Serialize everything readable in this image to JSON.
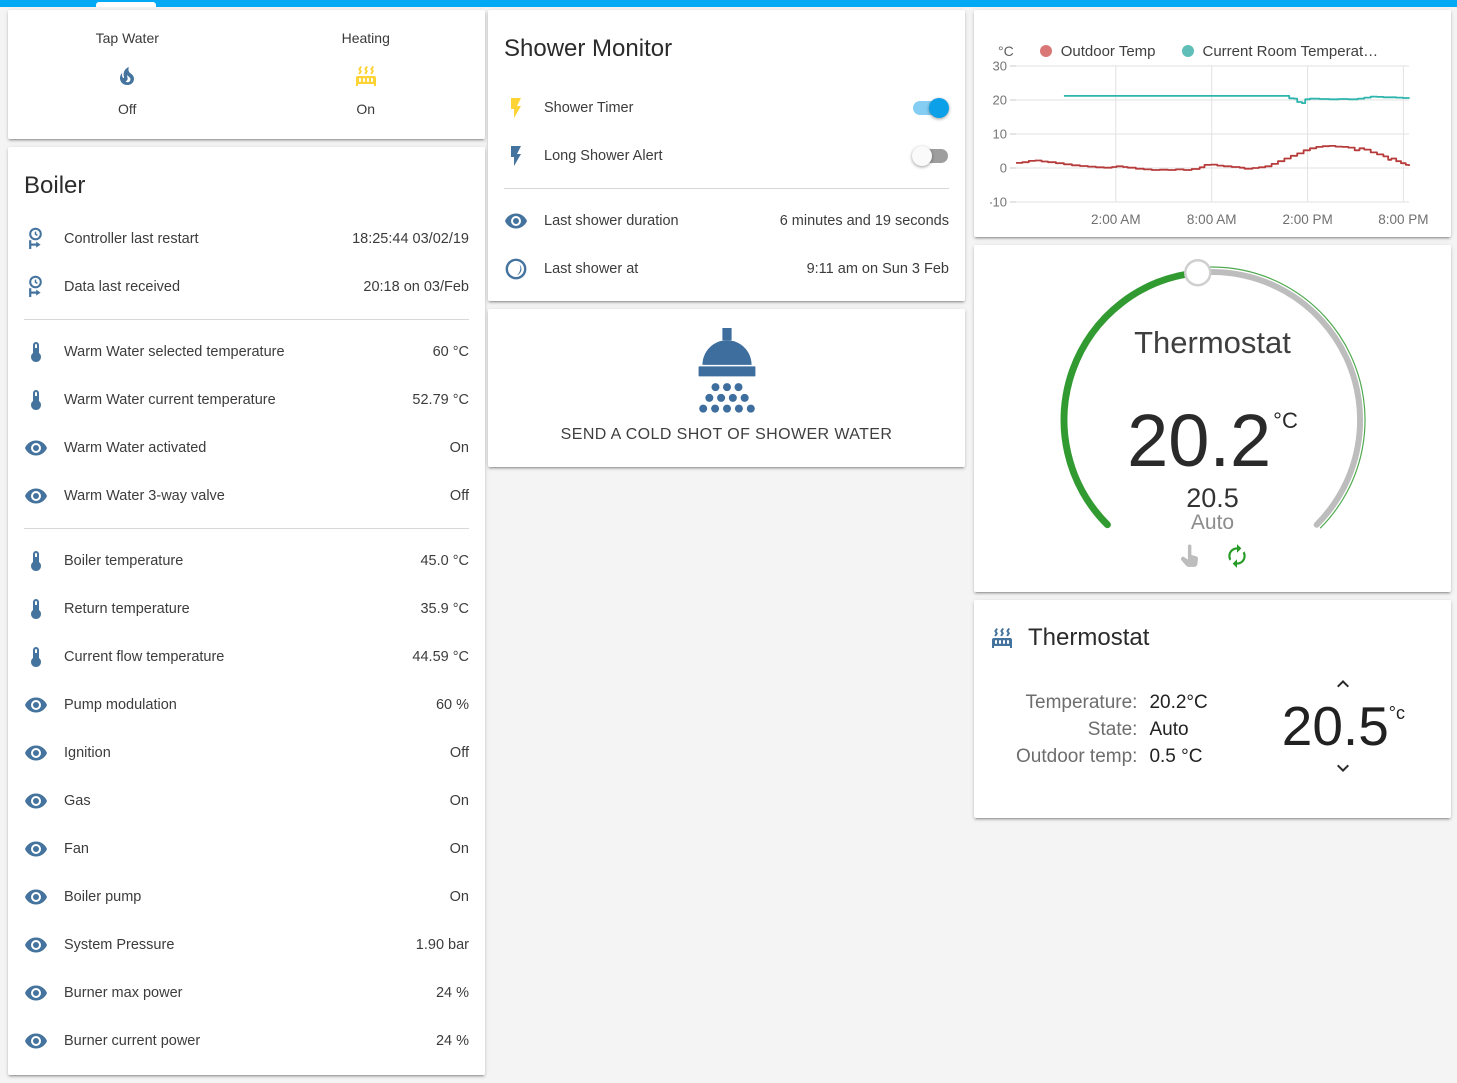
{
  "topbar": {
    "color": "#03a9f4"
  },
  "glance": {
    "items": [
      {
        "name": "Tap Water",
        "state": "Off",
        "icon": "fire-icon"
      },
      {
        "name": "Heating",
        "state": "On",
        "icon": "radiator-icon"
      }
    ]
  },
  "boiler": {
    "title": "Boiler",
    "rows_group1": [
      {
        "icon": "clock-start-icon",
        "label": "Controller last restart",
        "value": "18:25:44 03/02/19"
      },
      {
        "icon": "clock-start-icon",
        "label": "Data last received",
        "value": "20:18 on 03/Feb"
      }
    ],
    "rows_group2": [
      {
        "icon": "thermometer-icon",
        "label": "Warm Water selected temperature",
        "value": "60 °C"
      },
      {
        "icon": "thermometer-icon",
        "label": "Warm Water current temperature",
        "value": "52.79 °C"
      },
      {
        "icon": "eye-icon",
        "label": "Warm Water activated",
        "value": "On"
      },
      {
        "icon": "eye-icon",
        "label": "Warm Water 3-way valve",
        "value": "Off"
      }
    ],
    "rows_group3": [
      {
        "icon": "thermometer-icon",
        "label": "Boiler temperature",
        "value": "45.0 °C"
      },
      {
        "icon": "thermometer-icon",
        "label": "Return temperature",
        "value": "35.9 °C"
      },
      {
        "icon": "thermometer-icon",
        "label": "Current flow temperature",
        "value": "44.59 °C"
      },
      {
        "icon": "eye-icon",
        "label": "Pump modulation",
        "value": "60 %"
      },
      {
        "icon": "eye-icon",
        "label": "Ignition",
        "value": "Off"
      },
      {
        "icon": "eye-icon",
        "label": "Gas",
        "value": "On"
      },
      {
        "icon": "eye-icon",
        "label": "Fan",
        "value": "On"
      },
      {
        "icon": "eye-icon",
        "label": "Boiler pump",
        "value": "On"
      },
      {
        "icon": "eye-icon",
        "label": "System Pressure",
        "value": "1.90 bar"
      },
      {
        "icon": "eye-icon",
        "label": "Burner max power",
        "value": "24 %"
      },
      {
        "icon": "eye-icon",
        "label": "Burner current power",
        "value": "24 %"
      }
    ]
  },
  "shower": {
    "title": "Shower Monitor",
    "toggles": [
      {
        "label": "Shower Timer",
        "state": "on"
      },
      {
        "label": "Long Shower Alert",
        "state": "off"
      }
    ],
    "info": [
      {
        "label": "Last shower duration",
        "value": "6 minutes and 19 seconds"
      },
      {
        "label": "Last shower at",
        "value": "9:11 am on Sun 3 Feb"
      }
    ],
    "button_label": "SEND A COLD SHOT OF SHOWER WATER"
  },
  "chart_data": {
    "type": "line",
    "title": "",
    "xlabel": "",
    "ylabel": "°C",
    "ylim": [
      -10,
      30
    ],
    "yticks": [
      30,
      20,
      10,
      0,
      -10
    ],
    "x_window_hours": 24.6,
    "grid": true,
    "legend_position": "top",
    "xticks": [
      {
        "hours": 6.25,
        "label": "2:00 AM"
      },
      {
        "hours": 12.25,
        "label": "8:00 AM"
      },
      {
        "hours": 18.25,
        "label": "2:00 PM"
      },
      {
        "hours": 24.25,
        "label": "8:00 PM"
      }
    ],
    "series": [
      {
        "name": "Outdoor Temp",
        "color": "#b73b3b",
        "dot_color": "#d97777",
        "unit": "°C",
        "points": [
          [
            0,
            1.5
          ],
          [
            0.4,
            1.7
          ],
          [
            0.8,
            2.1
          ],
          [
            1.2,
            2.2
          ],
          [
            1.6,
            1.9
          ],
          [
            2,
            1.7
          ],
          [
            2.5,
            1.4
          ],
          [
            3,
            1.1
          ],
          [
            3.5,
            0.8
          ],
          [
            4,
            0.6
          ],
          [
            4.5,
            0.4
          ],
          [
            5,
            0.2
          ],
          [
            5.5,
            0.1
          ],
          [
            6,
            0.3
          ],
          [
            6.3,
            0.5
          ],
          [
            6.7,
            0.3
          ],
          [
            7,
            0.1
          ],
          [
            7.5,
            -0.2
          ],
          [
            8,
            -0.4
          ],
          [
            8.5,
            -0.6
          ],
          [
            9,
            -0.5
          ],
          [
            9.5,
            -0.6
          ],
          [
            10,
            -0.4
          ],
          [
            10.5,
            -0.6
          ],
          [
            11,
            -0.3
          ],
          [
            11.5,
            0.2
          ],
          [
            11.8,
            0.9
          ],
          [
            12.2,
            1.0
          ],
          [
            12.6,
            0.7
          ],
          [
            13,
            0.5
          ],
          [
            13.5,
            0.3
          ],
          [
            14,
            0.1
          ],
          [
            14.3,
            -0.2
          ],
          [
            14.8,
            0.0
          ],
          [
            15.2,
            0.2
          ],
          [
            15.6,
            0.5
          ],
          [
            16,
            1.2
          ],
          [
            16.4,
            2.0
          ],
          [
            16.8,
            2.8
          ],
          [
            17.2,
            3.6
          ],
          [
            17.6,
            4.3
          ],
          [
            18,
            5.2
          ],
          [
            18.4,
            5.8
          ],
          [
            18.8,
            6.2
          ],
          [
            19.2,
            6.4
          ],
          [
            19.6,
            6.5
          ],
          [
            20,
            6.3
          ],
          [
            20.4,
            6.2
          ],
          [
            20.8,
            6.0
          ],
          [
            21.2,
            5.2
          ],
          [
            21.5,
            5.8
          ],
          [
            21.8,
            5.4
          ],
          [
            22.2,
            4.6
          ],
          [
            22.6,
            4.0
          ],
          [
            23,
            3.4
          ],
          [
            23.3,
            2.4
          ],
          [
            23.5,
            2.8
          ],
          [
            23.8,
            2.0
          ],
          [
            24.1,
            1.4
          ],
          [
            24.4,
            0.9
          ],
          [
            24.6,
            0.6
          ]
        ]
      },
      {
        "name": "Current Room Temperat…",
        "color": "#2cb5ac",
        "dot_color": "#5fbfb8",
        "unit": "°C",
        "points": [
          [
            3,
            21.2
          ],
          [
            16.9,
            21.2
          ],
          [
            17.1,
            20.5
          ],
          [
            17.4,
            20.4
          ],
          [
            17.6,
            19.4
          ],
          [
            17.9,
            19.1
          ],
          [
            18.1,
            20.2
          ],
          [
            18.4,
            20.4
          ],
          [
            19,
            20.3
          ],
          [
            19.6,
            20.2
          ],
          [
            20.2,
            20.3
          ],
          [
            20.8,
            20.2
          ],
          [
            21.4,
            20.4
          ],
          [
            21.8,
            20.7
          ],
          [
            22.2,
            21.0
          ],
          [
            22.6,
            20.9
          ],
          [
            23,
            20.8
          ],
          [
            23.4,
            20.8
          ],
          [
            23.8,
            20.7
          ],
          [
            24.2,
            20.6
          ],
          [
            24.6,
            20.4
          ]
        ]
      }
    ]
  },
  "dial": {
    "title": "Thermostat",
    "current_temperature": "20.2",
    "unit": "°C",
    "target": "20.5",
    "mode": "Auto"
  },
  "thermostat": {
    "title": "Thermostat",
    "attributes": [
      {
        "label": "Temperature:",
        "value": "20.2°C"
      },
      {
        "label": "State:",
        "value": "Auto"
      },
      {
        "label": "Outdoor temp:",
        "value": "0.5 °C"
      }
    ],
    "setpoint": "20.5",
    "setpoint_unit": "°c"
  },
  "colors": {
    "accent": "#03a9f4",
    "icon_blue": "#44739e",
    "icon_yellow": "#fdd335",
    "toggle_on_thumb": "#0ba0e8",
    "toggle_on_track": "#85cdf3",
    "dial_green": "#319a31",
    "dial_gray": "#bdbdbd",
    "outdoor_series": "#b73b3b",
    "room_series": "#2cb5ac"
  }
}
